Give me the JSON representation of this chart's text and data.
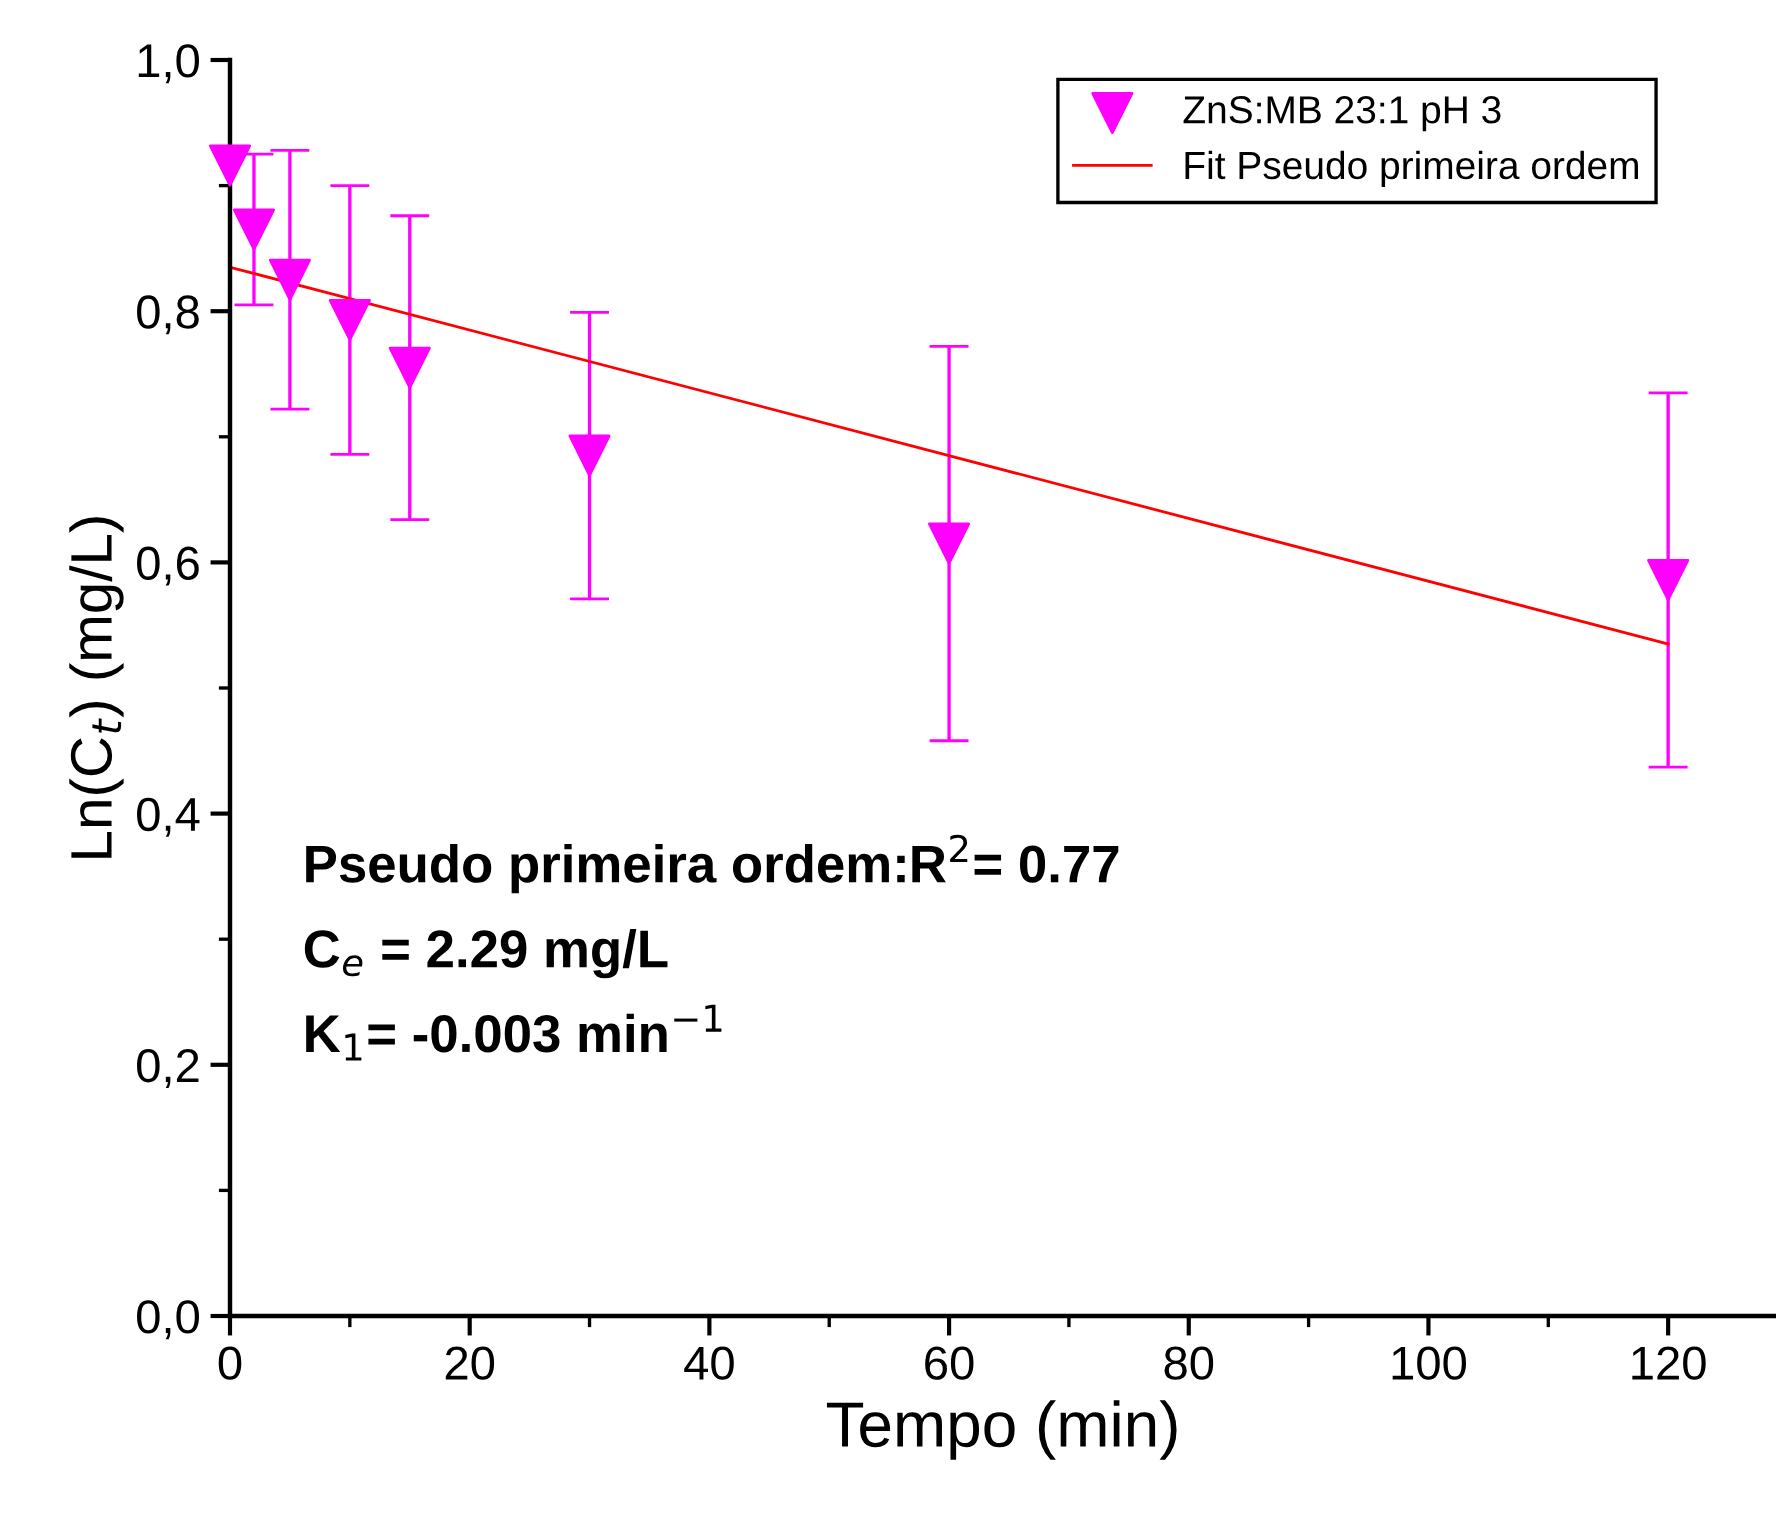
{
  "chart_data": {
    "type": "scatter",
    "xlabel": "Tempo (min)",
    "ylabel": "Ln(C$_{t}$) (mg/L)",
    "xlim": [
      0,
      129
    ],
    "xticks": [
      0,
      20,
      40,
      60,
      80,
      100,
      120
    ],
    "ylim": [
      0,
      1.0
    ],
    "yticks": [
      {
        "value": 0,
        "label": "0,0"
      },
      {
        "value": 0.2,
        "label": "0,2"
      },
      {
        "value": 0.4,
        "label": "0,4"
      },
      {
        "value": 0.6,
        "label": "0,6"
      },
      {
        "value": 0.8,
        "label": "0,8"
      },
      {
        "value": 1.0,
        "label": "1,0"
      }
    ],
    "grid": false,
    "legend": "top right",
    "series": [
      {
        "name": "ZnS:MB 23:1 pH 3",
        "color": "#ff00ff",
        "marker": "triangle",
        "x": [
          0,
          2,
          5,
          10,
          15,
          30,
          60,
          120
        ],
        "values": [
          0.916,
          0.865,
          0.825,
          0.793,
          0.755,
          0.685,
          0.615,
          0.586
        ],
        "errors": [
          null,
          0.06,
          0.103,
          0.107,
          0.121,
          0.114,
          0.157,
          0.149
        ]
      },
      {
        "name": "Fit Pseudo primeira ordem",
        "type": "line",
        "color": "#ff0000",
        "line_style": "solid",
        "x": [
          0,
          120
        ],
        "values": [
          0.835,
          0.535
        ]
      }
    ],
    "annotations": [
      "Pseudo primeira ordem:R$^{2}$= 0.77",
      "C$_{e}$ = 2.29 mg/L",
      "K$_{1}$= -0.003 min$^{−1}$"
    ]
  }
}
